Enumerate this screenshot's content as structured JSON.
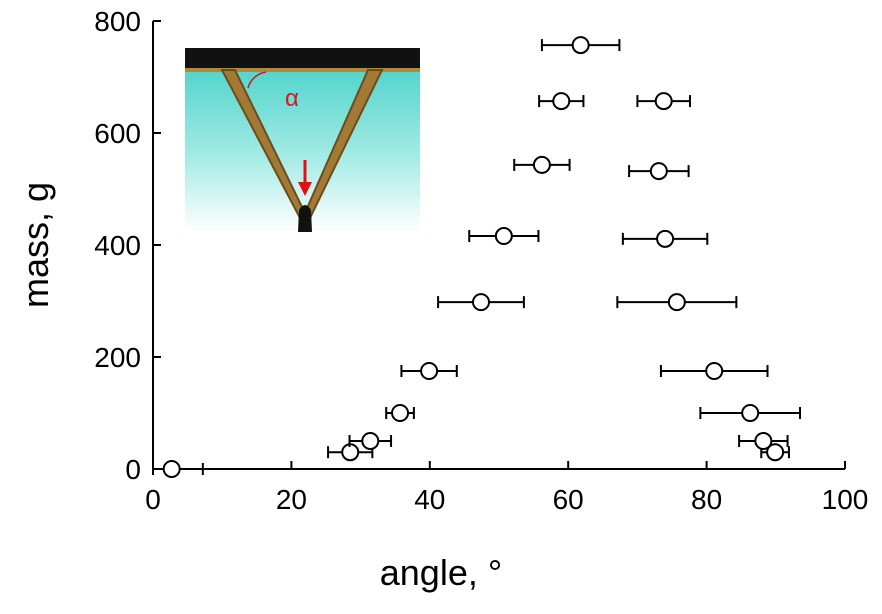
{
  "chart_data": {
    "type": "scatter",
    "x_label": "angle, °",
    "y_label": "mass, g",
    "x": [
      2.7,
      28.5,
      31.4,
      35.7,
      39.9,
      47.4,
      50.7,
      56.2,
      59.0,
      61.8,
      89.9,
      88.2,
      86.3,
      81.1,
      75.7,
      74.0,
      73.1,
      73.8
    ],
    "values": [
      0,
      30,
      50,
      100,
      175,
      298,
      416,
      543,
      657,
      757,
      30,
      50,
      100,
      175,
      298,
      411,
      532,
      657
    ],
    "xerr": [
      4.5,
      3.2,
      3,
      2,
      4,
      6.2,
      5,
      4,
      3.2,
      5.6,
      2,
      3.5,
      7.2,
      7.7,
      8.6,
      6.1,
      4.3,
      3.8
    ],
    "color": "#000000",
    "xlim": [
      0,
      100
    ],
    "xticks": [
      0,
      20,
      40,
      60,
      80,
      100
    ],
    "ylim": [
      0,
      800
    ],
    "yticks": [
      0,
      200,
      400,
      600,
      800
    ],
    "grid": false,
    "inset_label": "α"
  }
}
